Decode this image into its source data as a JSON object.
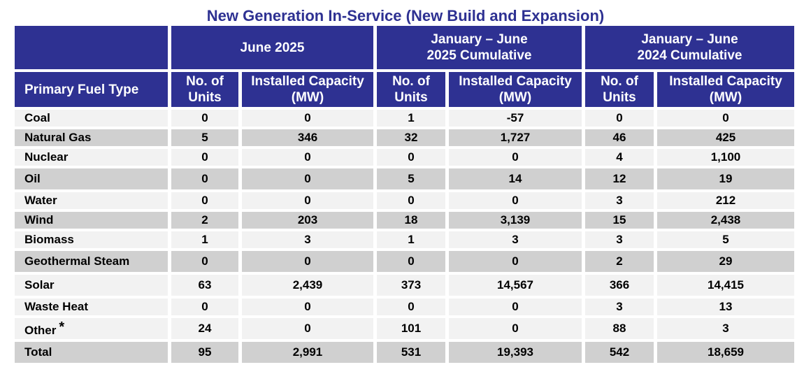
{
  "title": "New Generation In-Service (New Build and Expansion)",
  "chart_data": {
    "type": "table",
    "title": "New Generation In-Service (New Build and Expansion)",
    "group_headers": [
      "June 2025",
      "January – June 2025 Cumulative",
      "January – June 2024 Cumulative"
    ],
    "row_header": "Primary Fuel Type",
    "sub_headers": [
      "No. of Units",
      "Installed Capacity (MW)"
    ],
    "rows": [
      {
        "fuel": "Coal",
        "star": "",
        "values": [
          "0",
          "0",
          "1",
          "-57",
          "0",
          "0"
        ]
      },
      {
        "fuel": "Natural Gas",
        "star": "",
        "values": [
          "5",
          "346",
          "32",
          "1,727",
          "46",
          "425"
        ]
      },
      {
        "fuel": "Nuclear",
        "star": "",
        "values": [
          "0",
          "0",
          "0",
          "0",
          "4",
          "1,100"
        ]
      },
      {
        "fuel": "Oil",
        "star": "",
        "values": [
          "0",
          "0",
          "5",
          "14",
          "12",
          "19"
        ]
      },
      {
        "fuel": "Water",
        "star": "",
        "values": [
          "0",
          "0",
          "0",
          "0",
          "3",
          "212"
        ]
      },
      {
        "fuel": "Wind",
        "star": "",
        "values": [
          "2",
          "203",
          "18",
          "3,139",
          "15",
          "2,438"
        ]
      },
      {
        "fuel": "Biomass",
        "star": "",
        "values": [
          "1",
          "3",
          "1",
          "3",
          "3",
          "5"
        ]
      },
      {
        "fuel": "Geothermal Steam",
        "star": "",
        "values": [
          "0",
          "0",
          "0",
          "0",
          "2",
          "29"
        ]
      },
      {
        "fuel": "Solar",
        "star": "",
        "values": [
          "63",
          "2,439",
          "373",
          "14,567",
          "366",
          "14,415"
        ]
      },
      {
        "fuel": "Waste Heat",
        "star": "",
        "values": [
          "0",
          "0",
          "0",
          "0",
          "3",
          "13"
        ]
      },
      {
        "fuel": "Other",
        "star": "*",
        "values": [
          "24",
          "0",
          "101",
          "0",
          "88",
          "3"
        ]
      },
      {
        "fuel": "Total",
        "star": "",
        "values": [
          "95",
          "2,991",
          "531",
          "19,393",
          "542",
          "18,659"
        ]
      }
    ]
  },
  "colors": {
    "header": "#2e3192",
    "row_light": "#f2f2f2",
    "row_dark": "#d0d0d0",
    "title": "#2e3192"
  }
}
